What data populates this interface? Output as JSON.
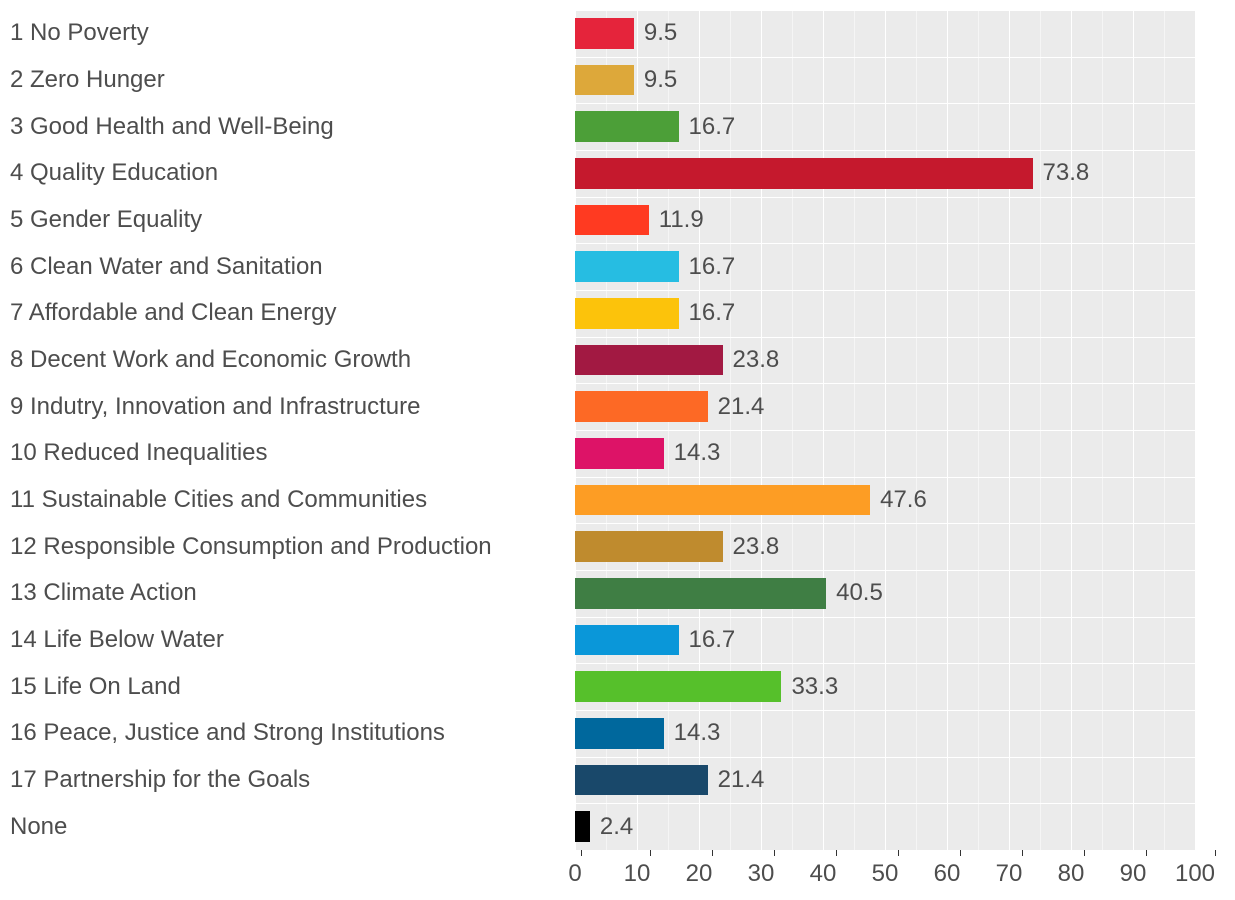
{
  "chart": {
    "type": "horizontal_bar",
    "xlim": [
      0,
      100
    ],
    "xtick_step": 10,
    "xticks": [
      0,
      10,
      20,
      30,
      40,
      50,
      60,
      70,
      80,
      90,
      100
    ],
    "background_color": "#ebebeb",
    "grid_major_color": "#ffffff",
    "grid_minor_color": "#f5f5f5",
    "label_color": "#4d4d4d",
    "label_fontsize": 24,
    "axis_fontsize": 24,
    "bar_height_ratio": 0.66,
    "rows": [
      {
        "label": "1 No Poverty",
        "value": 9.5,
        "color": "#e5243b"
      },
      {
        "label": "2 Zero Hunger",
        "value": 9.5,
        "color": "#dda83a"
      },
      {
        "label": "3 Good Health and Well-Being",
        "value": 16.7,
        "color": "#4c9f38"
      },
      {
        "label": "4 Quality Education",
        "value": 73.8,
        "color": "#c5192d"
      },
      {
        "label": "5 Gender Equality",
        "value": 11.9,
        "color": "#ff3a21"
      },
      {
        "label": "6 Clean Water and Sanitation",
        "value": 16.7,
        "color": "#26bde2"
      },
      {
        "label": "7 Affordable and Clean Energy",
        "value": 16.7,
        "color": "#fcc30b"
      },
      {
        "label": "8 Decent Work and Economic Growth",
        "value": 23.8,
        "color": "#a21942"
      },
      {
        "label": "9 Indutry, Innovation and Infrastructure",
        "value": 21.4,
        "color": "#fd6925"
      },
      {
        "label": "10 Reduced Inequalities",
        "value": 14.3,
        "color": "#dd1367"
      },
      {
        "label": "11 Sustainable Cities and Communities",
        "value": 47.6,
        "color": "#fd9d24"
      },
      {
        "label": "12 Responsible Consumption and Production",
        "value": 23.8,
        "color": "#bf8b2e"
      },
      {
        "label": "13 Climate Action",
        "value": 40.5,
        "color": "#3f7e44"
      },
      {
        "label": "14 Life Below Water",
        "value": 16.7,
        "color": "#0a97d9"
      },
      {
        "label": "15 Life On Land",
        "value": 33.3,
        "color": "#56c02b"
      },
      {
        "label": "16 Peace, Justice and Strong Institutions",
        "value": 14.3,
        "color": "#00689d"
      },
      {
        "label": "17 Partnership for the Goals",
        "value": 21.4,
        "color": "#19486a"
      },
      {
        "label": "None",
        "value": 2.4,
        "color": "#000000"
      }
    ]
  }
}
